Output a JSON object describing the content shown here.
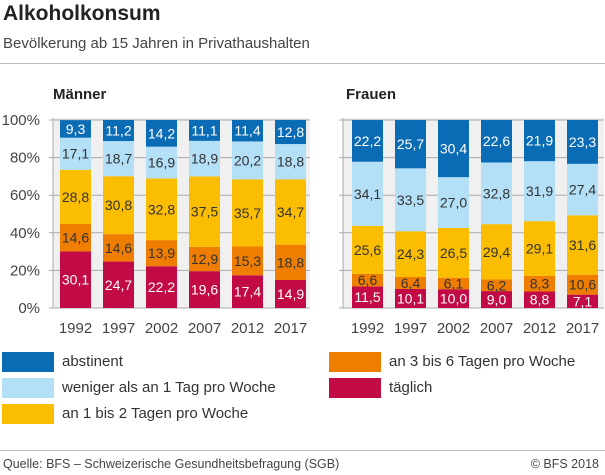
{
  "header": {
    "title": "Alkoholkonsum",
    "subtitle": "Bevölkerung ab 15 Jahren in Privathaushalten"
  },
  "chart_data": [
    {
      "type": "bar",
      "stacked": true,
      "title": "Männer",
      "categories": [
        "1992",
        "1997",
        "2002",
        "2007",
        "2012",
        "2017"
      ],
      "ylim": [
        0,
        100
      ],
      "yticks": [
        "0%",
        "20%",
        "40%",
        "60%",
        "80%",
        "100%"
      ],
      "grid": true,
      "series": [
        {
          "name": "täglich",
          "values": [
            30.1,
            24.7,
            22.2,
            19.6,
            17.4,
            14.9
          ]
        },
        {
          "name": "an 3 bis 6 Tagen pro Woche",
          "values": [
            14.6,
            14.6,
            13.9,
            12.9,
            15.3,
            18.8
          ]
        },
        {
          "name": "an 1 bis 2 Tagen pro Woche",
          "values": [
            28.8,
            30.8,
            32.8,
            37.5,
            35.7,
            34.7
          ]
        },
        {
          "name": "weniger als an 1 Tag pro Woche",
          "values": [
            17.1,
            18.7,
            16.9,
            18.9,
            20.2,
            18.8
          ]
        },
        {
          "name": "abstinent",
          "values": [
            9.3,
            11.2,
            14.2,
            11.1,
            11.4,
            12.8
          ]
        }
      ],
      "labels": [
        [
          "30,1",
          "24,7",
          "22,2",
          "19,6",
          "17,4",
          "14,9"
        ],
        [
          "14,6",
          "14,6",
          "13,9",
          "12,9",
          "15,3",
          "18,8"
        ],
        [
          "28,8",
          "30,8",
          "32,8",
          "37,5",
          "35,7",
          "34,7"
        ],
        [
          "17,1",
          "18,7",
          "16,9",
          "18,9",
          "20,2",
          "18,8"
        ],
        [
          "9,3",
          "11,2",
          "14,2",
          "11,1",
          "11,4",
          "12,8"
        ]
      ]
    },
    {
      "type": "bar",
      "stacked": true,
      "title": "Frauen",
      "categories": [
        "1992",
        "1997",
        "2002",
        "2007",
        "2012",
        "2017"
      ],
      "ylim": [
        0,
        100
      ],
      "grid": true,
      "series": [
        {
          "name": "täglich",
          "values": [
            11.5,
            10.1,
            10.0,
            9.0,
            8.8,
            7.1
          ]
        },
        {
          "name": "an 3 bis 6 Tagen pro Woche",
          "values": [
            6.6,
            6.4,
            6.1,
            6.2,
            8.3,
            10.6
          ]
        },
        {
          "name": "an 1 bis 2 Tagen pro Woche",
          "values": [
            25.6,
            24.3,
            26.5,
            29.4,
            29.1,
            31.6
          ]
        },
        {
          "name": "weniger als an 1 Tag pro Woche",
          "values": [
            34.1,
            33.5,
            27.0,
            32.8,
            31.9,
            27.4
          ]
        },
        {
          "name": "abstinent",
          "values": [
            22.2,
            25.7,
            30.4,
            22.6,
            21.9,
            23.3
          ]
        }
      ],
      "labels": [
        [
          "11,5",
          "10,1",
          "10,0",
          "9,0",
          "8,8",
          "7,1"
        ],
        [
          "6,6",
          "6,4",
          "6,1",
          "6,2",
          "8,3",
          "10,6"
        ],
        [
          "25,6",
          "24,3",
          "26,5",
          "29,4",
          "29,1",
          "31,6"
        ],
        [
          "34,1",
          "33,5",
          "27,0",
          "32,8",
          "31,9",
          "27,4"
        ],
        [
          "22,2",
          "25,7",
          "30,4",
          "22,6",
          "21,9",
          "23,3"
        ]
      ]
    }
  ],
  "colors": {
    "täglich": "#c20a45",
    "an 3 bis 6 Tagen pro Woche": "#ee7d00",
    "an 1 bis 2 Tagen pro Woche": "#fbbd00",
    "weniger als an 1 Tag pro Woche": "#b3dff7",
    "abstinent": "#0b6cb6"
  },
  "legend": {
    "placement": "bottom",
    "items": [
      {
        "label": "abstinent",
        "color": "#0b6cb6"
      },
      {
        "label": "weniger als an 1 Tag pro Woche",
        "color": "#b3dff7"
      },
      {
        "label": "an 1 bis 2 Tagen pro Woche",
        "color": "#fbbd00"
      },
      {
        "label": "an 3 bis 6 Tagen pro Woche",
        "color": "#ee7d00"
      },
      {
        "label": "täglich",
        "color": "#c20a45"
      }
    ]
  },
  "footer": {
    "source": "Quelle: BFS – Schweizerische Gesundheitsbefragung (SGB)",
    "copyright": "© BFS 2018"
  }
}
